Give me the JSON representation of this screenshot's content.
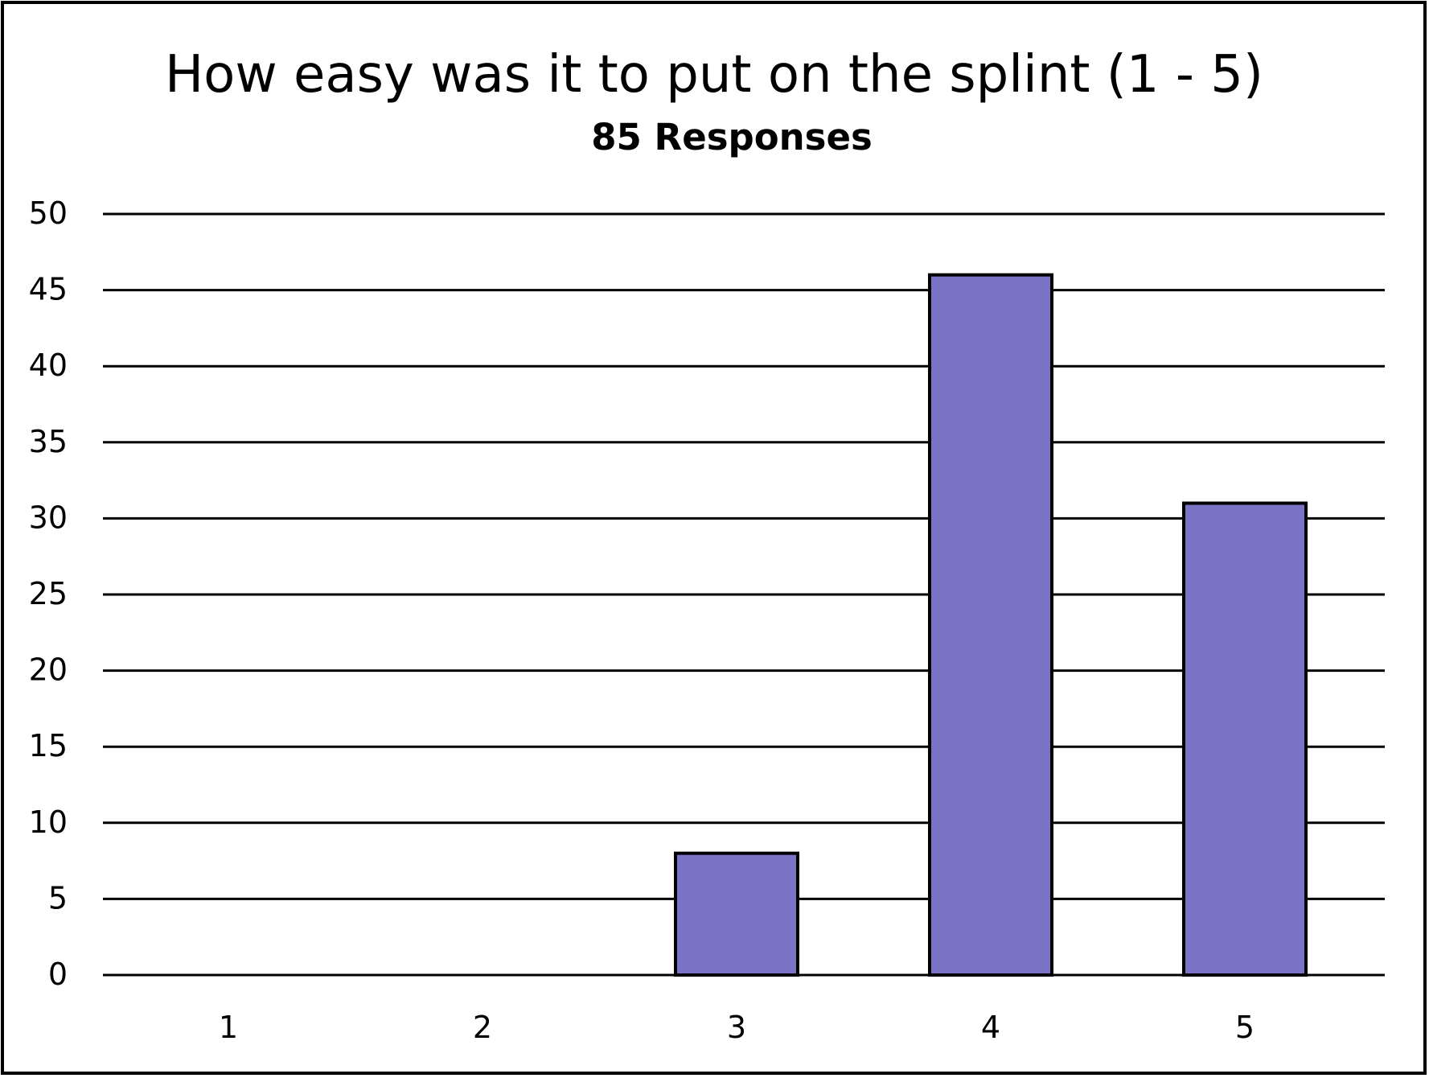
{
  "chart_data": {
    "type": "bar",
    "title": "How easy was it to put on the splint (1 - 5)",
    "subtitle": "85 Responses",
    "xlabel": "",
    "ylabel": "",
    "categories": [
      "1",
      "2",
      "3",
      "4",
      "5"
    ],
    "values": [
      0,
      0,
      8,
      46,
      31
    ],
    "ylim": [
      0,
      50
    ],
    "yticks": [
      "0",
      "5",
      "10",
      "15",
      "20",
      "25",
      "30",
      "35",
      "40",
      "45",
      "50"
    ],
    "grid": true,
    "legend": "none",
    "bar_color": "#7B73C6",
    "line_color": "#000000"
  }
}
